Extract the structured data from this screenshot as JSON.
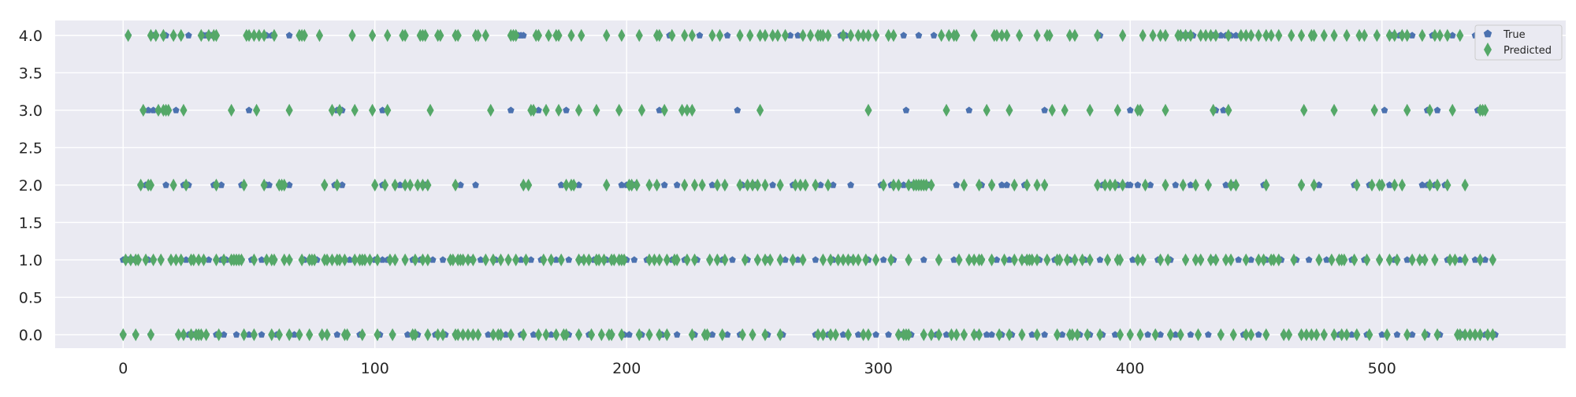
{
  "chart_data": {
    "type": "scatter",
    "title": "",
    "xlabel": "",
    "ylabel": "",
    "xlim": [
      -27,
      573
    ],
    "ylim": [
      -0.18,
      4.2
    ],
    "x_ticks": [
      "0",
      "100",
      "200",
      "300",
      "400",
      "500"
    ],
    "y_ticks": [
      "0.0",
      "0.5",
      "1.0",
      "1.5",
      "2.0",
      "2.5",
      "3.0",
      "3.5",
      "4.0"
    ],
    "grid": true,
    "legend": {
      "position": "top-right"
    },
    "series": [
      {
        "name": "True",
        "marker": "pentagon",
        "color": "#4c72b0",
        "points": [
          {
            "y": 4,
            "x": [
              2,
              12,
              13,
              16,
              17,
              20,
              23,
              26,
              32,
              33,
              34,
              35,
              36,
              57,
              59,
              66,
              157,
              158,
              159,
              217,
              229,
              240,
              265,
              268,
              285,
              287,
              296,
              299,
              310,
              316,
              322,
              387,
              388,
              414,
              421,
              423,
              425,
              433,
              436,
              438,
              440,
              442,
              448,
              498,
              504,
              507,
              512,
              520,
              528,
              537,
              538,
              539,
              540,
              541
            ]
          },
          {
            "y": 3,
            "x": [
              8,
              10,
              12,
              14,
              16,
              21,
              50,
              85,
              87,
              103,
              154,
              165,
              176,
              213,
              244,
              311,
              336,
              366,
              400,
              404,
              434,
              437,
              497,
              501,
              518,
              522,
              538,
              539,
              540
            ]
          },
          {
            "y": 2,
            "x": [
              7,
              9,
              10,
              17,
              24,
              25,
              26,
              36,
              39,
              47,
              57,
              58,
              62,
              66,
              80,
              84,
              87,
              103,
              108,
              110,
              112,
              120,
              134,
              140,
              159,
              174,
              178,
              181,
              198,
              200,
              203,
              212,
              215,
              220,
              234,
              239,
              246,
              251,
              258,
              266,
              277,
              282,
              289,
              301,
              305,
              310,
              313,
              314,
              316,
              318,
              320,
              331,
              341,
              345,
              349,
              351,
              358,
              366,
              389,
              392,
              395,
              399,
              400,
              403,
              408,
              418,
              424,
              431,
              438,
              441,
              453,
              468,
              475,
              489,
              495,
              499,
              503,
              516,
              518,
              521,
              525
            ]
          },
          {
            "y": 1,
            "x": [
              0,
              2,
              4,
              6,
              10,
              12,
              15,
              19,
              25,
              27,
              30,
              34,
              39,
              41,
              43,
              47,
              51,
              55,
              60,
              66,
              72,
              77,
              81,
              90,
              94,
              96,
              100,
              103,
              105,
              108,
              112,
              115,
              118,
              123,
              127,
              130,
              134,
              138,
              142,
              148,
              153,
              158,
              162,
              166,
              172,
              177,
              182,
              187,
              192,
              197,
              200,
              203,
              208,
              213,
              218,
              223,
              228,
              233,
              238,
              242,
              248,
              252,
              256,
              263,
              268,
              275,
              282,
              289,
              296,
              302,
              306,
              312,
              318,
              324,
              330,
              336,
              341,
              347,
              352,
              358,
              364,
              370,
              376,
              382,
              388,
              395,
              401,
              405,
              411,
              416,
              422,
              428,
              433,
              438,
              443,
              448,
              454,
              460,
              466,
              471,
              478,
              483,
              488,
              493,
              499,
              505,
              510,
              516,
              521,
              526,
              531,
              537,
              541,
              544
            ]
          },
          {
            "y": 0,
            "x": [
              0,
              5,
              11,
              22,
              26,
              28,
              30,
              33,
              37,
              40,
              45,
              50,
              55,
              61,
              68,
              79,
              85,
              94,
              102,
              107,
              113,
              117,
              124,
              128,
              132,
              139,
              145,
              152,
              158,
              163,
              170,
              177,
              185,
              194,
              199,
              201,
              206,
              214,
              220,
              227,
              234,
              240,
              245,
              256,
              262,
              275,
              280,
              286,
              292,
              299,
              304,
              309,
              313,
              318,
              323,
              327,
              334,
              339,
              343,
              345,
              349,
              353,
              361,
              366,
              373,
              380,
              384,
              389,
              394,
              400,
              407,
              412,
              418,
              424,
              431,
              436,
              445,
              451,
              461,
              468,
              472,
              477,
              483,
              488,
              494,
              500,
              506,
              512,
              518,
              523,
              532,
              537,
              541,
              545
            ]
          }
        ]
      },
      {
        "name": "Predicted",
        "marker": "diamond",
        "color": "#55a868",
        "points": [
          {
            "y": 4,
            "x": [
              2,
              11,
              13,
              16,
              20,
              23,
              31,
              34,
              36,
              37,
              49,
              50,
              52,
              54,
              56,
              60,
              70,
              71,
              72,
              78,
              91,
              99,
              105,
              111,
              112,
              118,
              119,
              120,
              125,
              126,
              132,
              133,
              140,
              141,
              144,
              154,
              155,
              156,
              164,
              165,
              169,
              172,
              173,
              178,
              182,
              192,
              198,
              205,
              212,
              213,
              218,
              223,
              226,
              234,
              237,
              245,
              249,
              253,
              255,
              258,
              260,
              263,
              270,
              273,
              276,
              277,
              278,
              280,
              286,
              289,
              292,
              294,
              296,
              299,
              304,
              306,
              325,
              328,
              330,
              331,
              338,
              346,
              347,
              349,
              351,
              356,
              363,
              367,
              368,
              376,
              378,
              387,
              397,
              405,
              409,
              412,
              414,
              419,
              420,
              422,
              424,
              428,
              430,
              432,
              434,
              439,
              444,
              446,
              448,
              451,
              454,
              456,
              459,
              464,
              468,
              472,
              473,
              477,
              481,
              486,
              491,
              493,
              498,
              503,
              505,
              508,
              510,
              516,
              521,
              523,
              526,
              531
            ]
          },
          {
            "y": 3,
            "x": [
              8,
              14,
              16,
              17,
              18,
              24,
              43,
              53,
              66,
              83,
              86,
              92,
              99,
              105,
              122,
              146,
              162,
              163,
              168,
              173,
              181,
              188,
              197,
              206,
              215,
              222,
              224,
              226,
              253,
              296,
              327,
              343,
              352,
              369,
              374,
              384,
              395,
              403,
              404,
              414,
              433,
              439,
              469,
              481,
              497,
              510,
              519,
              528,
              539,
              540,
              541
            ]
          },
          {
            "y": 2,
            "x": [
              7,
              10,
              11,
              20,
              25,
              37,
              48,
              56,
              62,
              63,
              64,
              80,
              85,
              100,
              104,
              108,
              112,
              114,
              117,
              119,
              121,
              132,
              159,
              161,
              176,
              178,
              179,
              192,
              201,
              202,
              204,
              209,
              212,
              223,
              227,
              230,
              236,
              239,
              245,
              248,
              250,
              252,
              255,
              261,
              267,
              269,
              271,
              275,
              280,
              302,
              306,
              308,
              312,
              314,
              315,
              316,
              317,
              318,
              319,
              321,
              334,
              340,
              345,
              354,
              359,
              363,
              366,
              387,
              390,
              392,
              394,
              397,
              406,
              414,
              421,
              426,
              431,
              440,
              442,
              454,
              468,
              473,
              490,
              496,
              499,
              500,
              505,
              508,
              519,
              522,
              526,
              533
            ]
          },
          {
            "y": 1,
            "x": [
              1,
              3,
              5,
              6,
              9,
              12,
              15,
              19,
              21,
              23,
              27,
              28,
              30,
              32,
              37,
              40,
              43,
              44,
              45,
              46,
              47,
              52,
              57,
              59,
              60,
              64,
              66,
              71,
              74,
              75,
              76,
              80,
              81,
              83,
              85,
              86,
              88,
              92,
              94,
              95,
              96,
              98,
              101,
              106,
              108,
              112,
              116,
              119,
              121,
              130,
              131,
              133,
              134,
              135,
              137,
              139,
              144,
              147,
              150,
              153,
              156,
              160,
              167,
              170,
              174,
              181,
              183,
              185,
              188,
              189,
              191,
              194,
              195,
              197,
              198,
              199,
              209,
              211,
              213,
              216,
              219,
              220,
              224,
              227,
              233,
              236,
              239,
              247,
              252,
              255,
              257,
              261,
              266,
              270,
              278,
              281,
              284,
              286,
              288,
              290,
              292,
              295,
              299,
              305,
              312,
              324,
              332,
              336,
              338,
              340,
              341,
              345,
              350,
              354,
              357,
              359,
              360,
              361,
              363,
              367,
              371,
              372,
              375,
              378,
              381,
              384,
              391,
              395,
              396,
              403,
              405,
              412,
              415,
              422,
              426,
              428,
              432,
              434,
              438,
              440,
              446,
              451,
              453,
              456,
              457,
              459,
              465,
              475,
              480,
              483,
              484,
              485,
              489,
              494,
              499,
              503,
              506,
              512,
              515,
              517,
              521,
              527,
              529,
              533,
              539,
              544
            ]
          },
          {
            "y": 0,
            "x": [
              0,
              5,
              11,
              22,
              24,
              27,
              29,
              30,
              31,
              33,
              38,
              48,
              52,
              59,
              62,
              66,
              70,
              74,
              79,
              81,
              88,
              89,
              95,
              101,
              107,
              115,
              116,
              121,
              125,
              127,
              132,
              133,
              135,
              137,
              139,
              141,
              147,
              149,
              150,
              154,
              159,
              165,
              168,
              172,
              175,
              176,
              181,
              186,
              190,
              193,
              194,
              198,
              205,
              209,
              213,
              216,
              226,
              231,
              232,
              238,
              246,
              250,
              255,
              261,
              276,
              278,
              281,
              283,
              288,
              294,
              296,
              308,
              310,
              311,
              312,
              318,
              321,
              324,
              329,
              331,
              334,
              338,
              340,
              348,
              352,
              357,
              363,
              371,
              376,
              377,
              379,
              383,
              388,
              396,
              400,
              404,
              410,
              416,
              420,
              427,
              436,
              441,
              446,
              448,
              454,
              461,
              463,
              468,
              470,
              472,
              474,
              477,
              481,
              484,
              486,
              490,
              495,
              502,
              510,
              517,
              522,
              530,
              531,
              533,
              535,
              537,
              539,
              542,
              544
            ]
          }
        ]
      }
    ]
  }
}
